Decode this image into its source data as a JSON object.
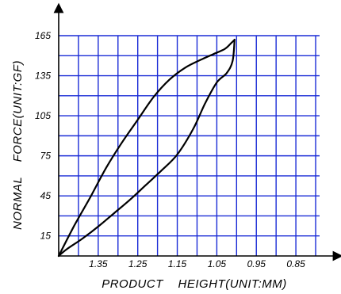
{
  "chart_data": {
    "type": "line",
    "title": "",
    "xlabel": "PRODUCT    HEIGHT(UNIT:MM)",
    "ylabel": "NORMAL    FORCE(UNIT:GF)",
    "x_reversed": true,
    "xlim": [
      1.45,
      0.79
    ],
    "ylim": [
      0,
      165
    ],
    "x_tick_labels": [
      "1.35",
      "1.25",
      "1.15",
      "1.05",
      "0.95",
      "0.85"
    ],
    "y_tick_labels": [
      "165",
      "135",
      "105",
      "75",
      "45",
      "15"
    ],
    "x_ticks": [
      1.35,
      1.25,
      1.15,
      1.05,
      0.95,
      0.85
    ],
    "y_ticks": [
      165,
      135,
      105,
      75,
      45,
      15
    ],
    "grid": true,
    "colors": {
      "grid": "#1a2bd6",
      "curve": "#000000"
    },
    "series": [
      {
        "x": [
          1.45,
          1.41,
          1.37,
          1.33,
          1.29,
          1.25,
          1.21,
          1.17,
          1.13,
          1.09,
          1.06,
          1.03,
          1.015,
          1.005
        ],
        "y": [
          0,
          23,
          44,
          66,
          85,
          102,
          119,
          132,
          141,
          147,
          151,
          155,
          159,
          162
        ]
      },
      {
        "x": [
          1.005,
          1.01,
          1.025,
          1.05,
          1.08,
          1.11,
          1.15,
          1.19,
          1.23,
          1.27,
          1.31,
          1.35,
          1.39,
          1.43,
          1.45
        ],
        "y": [
          162,
          146,
          137,
          130,
          114,
          95,
          76,
          64,
          53,
          42,
          32,
          22,
          13,
          5,
          0
        ]
      }
    ]
  }
}
